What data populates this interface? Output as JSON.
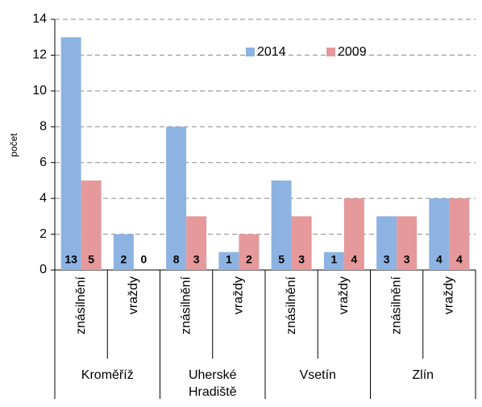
{
  "chart_data": {
    "type": "bar",
    "y_label": "počet",
    "groups": [
      "Kroměříž",
      "Uherské Hradiště",
      "Vsetín",
      "Zlín"
    ],
    "categories": [
      "znásilnění",
      "vraždy",
      "znásilnění",
      "vraždy",
      "znásilnění",
      "vraždy",
      "znásilnění",
      "vraždy"
    ],
    "series": [
      {
        "name": "2014",
        "color": "#8db3e2",
        "values": [
          13,
          2,
          8,
          1,
          5,
          1,
          3,
          4
        ]
      },
      {
        "name": "2009",
        "color": "#e6999a",
        "values": [
          5,
          0,
          3,
          2,
          3,
          4,
          3,
          4
        ]
      }
    ],
    "ylim": [
      0,
      14
    ],
    "yticks": [
      0,
      2,
      4,
      6,
      8,
      10,
      12,
      14
    ],
    "grid": true,
    "legend": "top",
    "data_labels": true
  }
}
